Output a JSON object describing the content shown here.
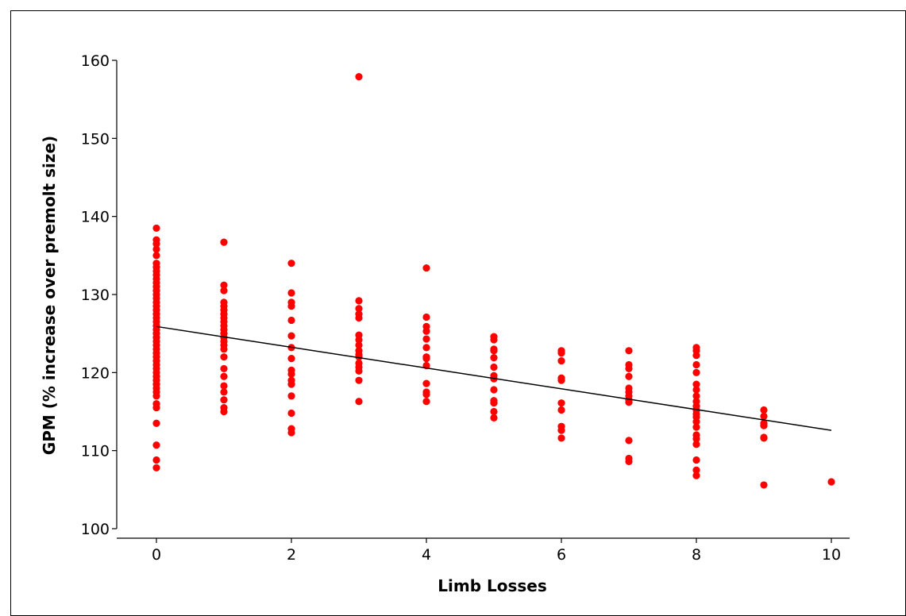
{
  "chart_data": {
    "type": "scatter",
    "title": "",
    "xlabel": "Limb Losses",
    "ylabel": "GPM (% increase over premolt size)",
    "xlim": [
      -0.75,
      10.75
    ],
    "ylim": [
      99.3,
      161
    ],
    "xticks": [
      0,
      2,
      4,
      6,
      8,
      10
    ],
    "yticks": [
      100,
      110,
      120,
      130,
      140,
      150,
      160
    ],
    "grid": false,
    "legend": "none",
    "point_color": "#ff0000",
    "line_color": "#000000",
    "trendline": {
      "x": [
        0,
        10
      ],
      "y": [
        125.9,
        112.6
      ]
    },
    "series": [
      {
        "x": 0,
        "y": [
          138.5,
          137.0,
          136.5,
          135.8,
          135.0,
          134.0,
          133.5,
          133.0,
          132.5,
          132.0,
          131.5,
          131.0,
          130.5,
          130.0,
          129.5,
          129.0,
          128.5,
          128.0,
          127.5,
          127.0,
          126.5,
          126.0,
          125.5,
          125.0,
          124.5,
          124.0,
          123.5,
          123.0,
          122.5,
          122.0,
          121.5,
          121.0,
          120.5,
          120.0,
          119.5,
          119.0,
          118.5,
          118.0,
          117.5,
          117.0,
          116.0,
          115.5,
          113.5,
          110.7,
          108.8,
          107.8
        ]
      },
      {
        "x": 1,
        "y": [
          136.7,
          131.2,
          130.5,
          129.0,
          128.5,
          128.0,
          127.5,
          127.0,
          126.5,
          126.0,
          125.5,
          125.0,
          124.5,
          124.0,
          123.5,
          123.0,
          122.0,
          120.5,
          119.5,
          118.3,
          117.5,
          116.5,
          115.5,
          115.0
        ]
      },
      {
        "x": 2,
        "y": [
          134.0,
          130.2,
          129.0,
          128.5,
          126.7,
          124.7,
          123.2,
          121.8,
          120.3,
          119.8,
          119.0,
          118.5,
          117.0,
          114.8,
          112.8,
          112.3
        ]
      },
      {
        "x": 3,
        "y": [
          157.9,
          129.2,
          128.2,
          127.5,
          127.0,
          124.8,
          124.2,
          123.5,
          122.8,
          122.3,
          122.0,
          121.2,
          120.7,
          120.2,
          119.0,
          116.3
        ]
      },
      {
        "x": 4,
        "y": [
          133.4,
          127.1,
          125.9,
          125.3,
          124.3,
          123.2,
          122.0,
          121.8,
          120.9,
          118.6,
          117.5,
          117.2,
          116.3
        ]
      },
      {
        "x": 5,
        "y": [
          124.6,
          124.2,
          123.0,
          122.8,
          121.9,
          120.7,
          119.6,
          119.2,
          117.8,
          116.4,
          116.1,
          115.0,
          114.2
        ]
      },
      {
        "x": 6,
        "y": [
          122.8,
          122.5,
          121.5,
          119.3,
          119.0,
          116.1,
          115.2,
          113.1,
          112.6,
          111.6
        ]
      },
      {
        "x": 7,
        "y": [
          122.8,
          121.0,
          120.5,
          119.5,
          118.0,
          117.5,
          117.0,
          116.5,
          116.2,
          111.3,
          109.0,
          108.6
        ]
      },
      {
        "x": 8,
        "y": [
          123.2,
          122.8,
          122.2,
          121.0,
          120.0,
          118.5,
          117.8,
          117.0,
          116.3,
          115.7,
          115.2,
          114.7,
          114.3,
          113.7,
          113.0,
          112.0,
          111.5,
          110.8,
          108.8,
          107.5,
          106.8
        ]
      },
      {
        "x": 9,
        "y": [
          115.2,
          114.4,
          113.5,
          113.2,
          111.7,
          111.6,
          105.6
        ]
      },
      {
        "x": 10,
        "y": [
          106.0
        ]
      }
    ]
  }
}
